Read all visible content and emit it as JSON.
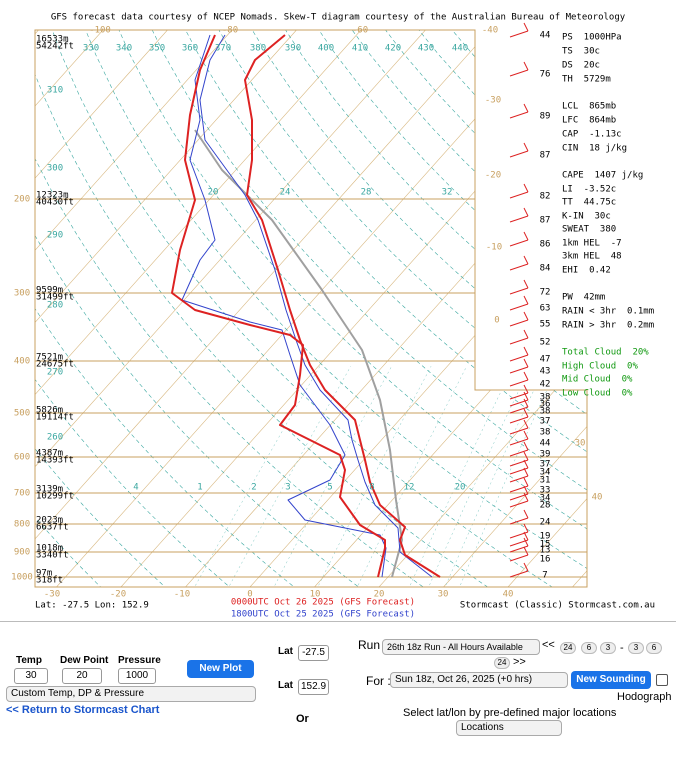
{
  "header": "GFS forecast data courtesy of NCEP Nomads.  Skew-T diagram courtesy of the Australian Bureau of Meteorology",
  "temp_top": [
    "-100",
    "-80",
    "-60",
    "-40"
  ],
  "temp_right": [
    "-30",
    "-20",
    "-10",
    "0",
    "30",
    "40"
  ],
  "temp_bottom": [
    "-30",
    "-20",
    "-10",
    "0",
    "10",
    "20",
    "30",
    "40"
  ],
  "pressure": [
    "200",
    "300",
    "400",
    "500",
    "600",
    "700",
    "800",
    "900",
    "1000"
  ],
  "heights": [
    [
      "16533m",
      "54242ft"
    ],
    [
      "12323m",
      "40430ft"
    ],
    [
      "9599m",
      "31499ft"
    ],
    [
      "7521m",
      "24675ft"
    ],
    [
      "5826m",
      "19114ft"
    ],
    [
      "4387m",
      "14393ft"
    ],
    [
      "3139m",
      "10299ft"
    ],
    [
      "2023m",
      "6637ft"
    ],
    [
      "1018m",
      "3340ft"
    ],
    [
      "97m",
      "318ft"
    ]
  ],
  "theta_labels": [
    "330",
    "340",
    "350",
    "360",
    "370",
    "380",
    "390",
    "400",
    "410",
    "420",
    "430",
    "440",
    "310",
    "300",
    "290",
    "280",
    "270",
    "260"
  ],
  "mixing_labels": [
    "4",
    "1",
    "2",
    "3",
    "5",
    "8",
    "12",
    "20",
    "20",
    "24",
    "28",
    "32"
  ],
  "wind_levels": [
    "44",
    "76",
    "89",
    "87",
    "82",
    "87",
    "86",
    "84",
    "72",
    "63",
    "55",
    "52",
    "47",
    "43",
    "42",
    "38",
    "36",
    "38",
    "37",
    "38",
    "44",
    "39",
    "37",
    "34",
    "31",
    "33",
    "34",
    "28",
    "24",
    "19",
    "15",
    "13",
    "16",
    "7"
  ],
  "indices": [
    "PS  1000HPa",
    "TS  30c",
    "DS  20c",
    "TH  5729m",
    "LCL  865mb",
    "LFC  864mb",
    "CAP  -1.13c",
    "CIN  18 j/kg",
    "CAPE  1407 j/kg",
    "LI  -3.52c",
    "TT  44.75c",
    "K-IN  30c",
    "SWEAT  380",
    "1km HEL  -7",
    "3km HEL  48",
    "EHI  0.42",
    "PW  42mm",
    "RAIN < 3hr  0.1mm",
    "RAIN > 3hr  0.2mm",
    "Total Cloud  20%",
    "High Cloud  0%",
    "Mid Cloud  0%",
    "Low Cloud  0%"
  ],
  "footer": {
    "location": "Lat: -27.5   Lon: 152.9",
    "run_red": "0000UTC Oct 26 2025 (GFS Forecast)",
    "run_blue": "1800UTC Oct 25 2025 (GFS Forecast)",
    "credit": "Stormcast (Classic)  Stormcast.com.au"
  },
  "form": {
    "temp_label": "Temp",
    "temp": "30",
    "dew_label": "Dew Point",
    "dew": "20",
    "pressure_label": "Pressure",
    "pressure": "1000",
    "new_plot": "New Plot",
    "mode": "Custom Temp, DP & Pressure",
    "return_link": "<< Return to Stormcast Chart",
    "lat_label": "Lat",
    "lat": "-27.5",
    "lon_label": "Lat",
    "lon": "152.9",
    "or": "Or",
    "run_label": "Run",
    "run": "26th 18z Run - All Hours Available",
    "prev": "<<",
    "steps": [
      "24",
      "6",
      "3",
      "-",
      "3",
      "6",
      "24"
    ],
    "next": ">>",
    "for_label": "For :",
    "for": "Sun 18z, Oct 26, 2025 (+0 hrs)",
    "new_sounding": "New Sounding",
    "hodograph": "Hodograph",
    "locations_prompt": "Select lat/lon by pre-defined major locations",
    "locations": "Locations"
  }
}
